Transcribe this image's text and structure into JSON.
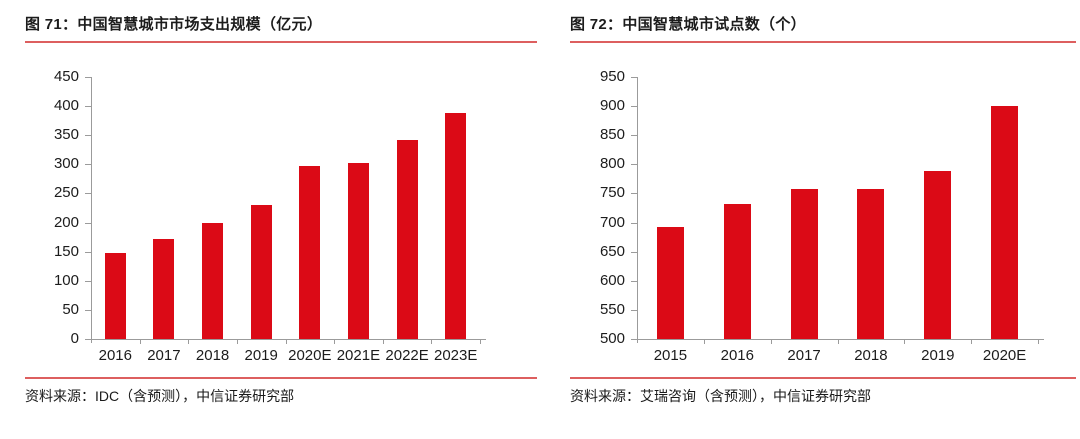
{
  "page": {
    "background": "#ffffff",
    "rule_color": "#dd5f5f",
    "axis_color": "#9b9b9b",
    "text_color": "#1a1a1a"
  },
  "chart_data": [
    {
      "type": "bar",
      "title": "图 71：中国智慧城市市场支出规模（亿元）",
      "categories": [
        "2016",
        "2017",
        "2018",
        "2019",
        "2020E",
        "2021E",
        "2022E",
        "2023E"
      ],
      "values": [
        147,
        172,
        200,
        230,
        298,
        302,
        342,
        389
      ],
      "xlabel": "",
      "ylabel": "",
      "ylim": [
        0,
        450
      ],
      "ytick_step": 50,
      "grid": false,
      "legend": false,
      "bar_color": "#db0a16",
      "source": "资料来源：IDC（含预测），中信证券研究部"
    },
    {
      "type": "bar",
      "title": "图 72：中国智慧城市试点数（个）",
      "categories": [
        "2015",
        "2016",
        "2017",
        "2018",
        "2019",
        "2020E"
      ],
      "values": [
        693,
        732,
        758,
        758,
        788,
        900
      ],
      "xlabel": "",
      "ylabel": "",
      "ylim": [
        500,
        950
      ],
      "ytick_step": 50,
      "grid": false,
      "legend": false,
      "bar_color": "#db0a16",
      "source": "资料来源：艾瑞咨询（含预测），中信证券研究部"
    }
  ]
}
